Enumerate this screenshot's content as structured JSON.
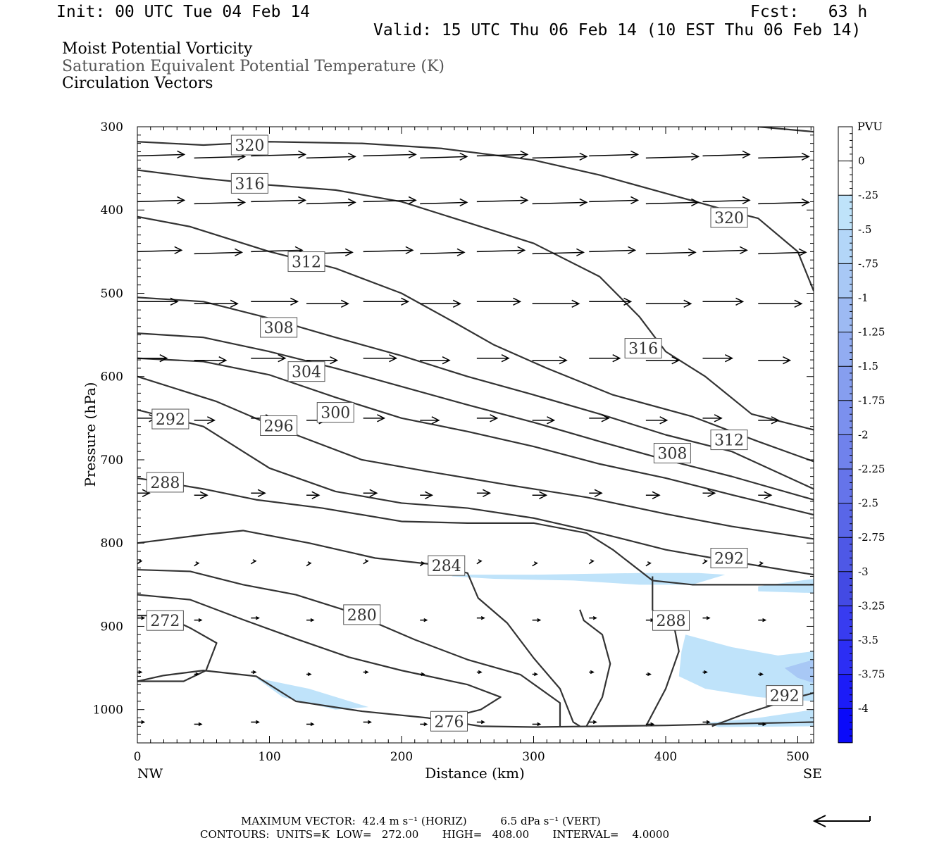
{
  "header": {
    "init": "Init: 00 UTC Tue 04 Feb 14",
    "fcst": "Fcst:   63 h",
    "valid": "Valid: 15 UTC Thu 06 Feb 14 (10 EST Thu 06 Feb 14)",
    "line1": "Moist Potential Vorticity",
    "line2": "Saturation Equivalent Potential Temperature (K)",
    "line3": "Circulation Vectors"
  },
  "footer": {
    "max_vector": "MAXIMUM VECTOR:  42.4 m s⁻¹ (HORIZ)          6.5 dPa s⁻¹ (VERT)",
    "contours": "CONTOURS:  UNITS=K  LOW=   272.00       HIGH=   408.00       INTERVAL=    4.0000"
  },
  "colors": {
    "contour": "#333333",
    "vector": "#000000",
    "pv_light": "#bfe3fa",
    "pv_mid": "#a8c8f5"
  },
  "chart_data": {
    "type": "cross-section",
    "xlabel": "Distance (km)",
    "ylabel": "Pressure (hPa)",
    "xlim": [
      0,
      512
    ],
    "ylim": [
      1040,
      300
    ],
    "x_ticks": [
      0,
      100,
      200,
      300,
      400,
      500
    ],
    "y_ticks": [
      300,
      400,
      500,
      600,
      700,
      800,
      900,
      1000
    ],
    "x_end_labels": [
      "NW",
      "SE"
    ],
    "colorbar": {
      "title": "PVU",
      "levels": [
        "0",
        "-.25",
        "-.5",
        "-.75",
        "-1",
        "-1.25",
        "-1.5",
        "-1.75",
        "-2",
        "-2.25",
        "-2.5",
        "-2.75",
        "-3",
        "-3.25",
        "-3.5",
        "-3.75",
        "-4"
      ],
      "colors": [
        "#ffffff",
        "#ffffff",
        "#bfe3fa",
        "#b3d6f8",
        "#a8c8f5",
        "#9dbaf3",
        "#92acf1",
        "#869eef",
        "#7b90ee",
        "#7082ec",
        "#6574ea",
        "#5966e8",
        "#4e58e6",
        "#434ae4",
        "#383cf0",
        "#2c2ef4",
        "#1c1cf8",
        "#0a0afa"
      ]
    },
    "contour_labels": [
      {
        "label": "320",
        "x": 85,
        "p": 322
      },
      {
        "label": "316",
        "x": 85,
        "p": 368
      },
      {
        "label": "312",
        "x": 128,
        "p": 462
      },
      {
        "label": "308",
        "x": 107,
        "p": 541
      },
      {
        "label": "304",
        "x": 128,
        "p": 594
      },
      {
        "label": "300",
        "x": 150,
        "p": 643
      },
      {
        "label": "296",
        "x": 107,
        "p": 659
      },
      {
        "label": "292",
        "x": 25,
        "p": 651
      },
      {
        "label": "288",
        "x": 21,
        "p": 727
      },
      {
        "label": "284",
        "x": 234,
        "p": 827
      },
      {
        "label": "280",
        "x": 170,
        "p": 886
      },
      {
        "label": "272",
        "x": 21,
        "p": 893
      },
      {
        "label": "276",
        "x": 236,
        "p": 1014
      },
      {
        "label": "316",
        "x": 383,
        "p": 566
      },
      {
        "label": "320",
        "x": 448,
        "p": 409
      },
      {
        "label": "312",
        "x": 448,
        "p": 676
      },
      {
        "label": "308",
        "x": 405,
        "p": 692
      },
      {
        "label": "292",
        "x": 448,
        "p": 818
      },
      {
        "label": "288",
        "x": 404,
        "p": 893
      },
      {
        "label": "292",
        "x": 490,
        "p": 983
      }
    ],
    "contours": [
      {
        "level": 320,
        "pts": [
          [
            0,
            318
          ],
          [
            50,
            322
          ],
          [
            100,
            318
          ],
          [
            170,
            320
          ],
          [
            230,
            326
          ],
          [
            300,
            340
          ],
          [
            350,
            358
          ],
          [
            400,
            380
          ],
          [
            450,
            402
          ],
          [
            470,
            410
          ],
          [
            500,
            450
          ],
          [
            512,
            497
          ]
        ]
      },
      {
        "level": 320,
        "pts": [
          [
            470,
            300
          ],
          [
            512,
            306
          ]
        ]
      },
      {
        "level": 316,
        "pts": [
          [
            0,
            352
          ],
          [
            50,
            362
          ],
          [
            100,
            370
          ],
          [
            150,
            376
          ],
          [
            200,
            390
          ],
          [
            250,
            415
          ],
          [
            300,
            440
          ],
          [
            350,
            480
          ],
          [
            380,
            528
          ],
          [
            400,
            570
          ],
          [
            430,
            600
          ],
          [
            465,
            645
          ],
          [
            512,
            664
          ]
        ]
      },
      {
        "level": 312,
        "pts": [
          [
            0,
            408
          ],
          [
            40,
            420
          ],
          [
            100,
            450
          ],
          [
            150,
            470
          ],
          [
            200,
            500
          ],
          [
            240,
            535
          ],
          [
            270,
            562
          ],
          [
            310,
            590
          ],
          [
            360,
            622
          ],
          [
            420,
            648
          ],
          [
            470,
            678
          ],
          [
            512,
            702
          ]
        ]
      },
      {
        "level": 308,
        "pts": [
          [
            0,
            505
          ],
          [
            50,
            510
          ],
          [
            100,
            530
          ],
          [
            150,
            553
          ],
          [
            200,
            575
          ],
          [
            250,
            600
          ],
          [
            300,
            622
          ],
          [
            350,
            645
          ],
          [
            400,
            670
          ],
          [
            450,
            690
          ],
          [
            512,
            735
          ]
        ]
      },
      {
        "level": 304,
        "pts": [
          [
            0,
            548
          ],
          [
            50,
            553
          ],
          [
            100,
            570
          ],
          [
            150,
            590
          ],
          [
            200,
            612
          ],
          [
            250,
            634
          ],
          [
            300,
            655
          ],
          [
            350,
            678
          ],
          [
            400,
            700
          ],
          [
            450,
            720
          ],
          [
            512,
            748
          ]
        ]
      },
      {
        "level": 300,
        "pts": [
          [
            0,
            578
          ],
          [
            50,
            582
          ],
          [
            100,
            598
          ],
          [
            150,
            625
          ],
          [
            200,
            650
          ],
          [
            250,
            666
          ],
          [
            300,
            684
          ],
          [
            350,
            705
          ],
          [
            400,
            722
          ],
          [
            450,
            742
          ],
          [
            512,
            766
          ]
        ]
      },
      {
        "level": 296,
        "pts": [
          [
            0,
            600
          ],
          [
            60,
            630
          ],
          [
            110,
            664
          ],
          [
            170,
            700
          ],
          [
            220,
            714
          ],
          [
            280,
            730
          ],
          [
            340,
            745
          ],
          [
            400,
            765
          ],
          [
            450,
            780
          ],
          [
            512,
            795
          ]
        ]
      },
      {
        "level": 292,
        "pts": [
          [
            0,
            640
          ],
          [
            50,
            660
          ],
          [
            80,
            690
          ],
          [
            100,
            710
          ],
          [
            150,
            738
          ],
          [
            200,
            752
          ],
          [
            250,
            758
          ],
          [
            300,
            770
          ],
          [
            350,
            788
          ],
          [
            400,
            808
          ],
          [
            450,
            822
          ],
          [
            512,
            838
          ]
        ]
      },
      {
        "level": 288,
        "pts": [
          [
            0,
            722
          ],
          [
            50,
            735
          ],
          [
            90,
            748
          ],
          [
            140,
            758
          ],
          [
            200,
            774
          ],
          [
            250,
            776
          ],
          [
            300,
            776
          ],
          [
            340,
            788
          ],
          [
            360,
            808
          ],
          [
            390,
            845
          ],
          [
            420,
            850
          ],
          [
            450,
            850
          ],
          [
            470,
            850
          ],
          [
            512,
            850
          ]
        ]
      },
      {
        "level": 284,
        "pts": [
          [
            0,
            800
          ],
          [
            50,
            790
          ],
          [
            80,
            785
          ],
          [
            130,
            800
          ],
          [
            180,
            818
          ],
          [
            220,
            825
          ],
          [
            250,
            836
          ],
          [
            258,
            866
          ],
          [
            280,
            896
          ],
          [
            300,
            938
          ],
          [
            320,
            975
          ],
          [
            330,
            1015
          ],
          [
            335,
            1020
          ]
        ]
      },
      {
        "level": 280,
        "pts": [
          [
            0,
            832
          ],
          [
            40,
            834
          ],
          [
            80,
            850
          ],
          [
            120,
            862
          ],
          [
            160,
            882
          ],
          [
            210,
            916
          ],
          [
            250,
            940
          ],
          [
            290,
            958
          ],
          [
            320,
            992
          ],
          [
            320,
            1020
          ]
        ]
      },
      {
        "level": 276,
        "pts": [
          [
            0,
            862
          ],
          [
            40,
            868
          ],
          [
            80,
            892
          ],
          [
            120,
            915
          ],
          [
            160,
            937
          ],
          [
            200,
            953
          ],
          [
            250,
            970
          ],
          [
            275,
            985
          ],
          [
            260,
            1000
          ],
          [
            240,
            1008
          ]
        ]
      },
      {
        "level": 272,
        "pts": [
          [
            0,
            887
          ],
          [
            20,
            887
          ],
          [
            40,
            902
          ],
          [
            60,
            920
          ],
          [
            52,
            953
          ],
          [
            35,
            966
          ],
          [
            0,
            966
          ]
        ]
      },
      {
        "level": 276,
        "pts": [
          [
            0,
            966
          ],
          [
            20,
            959
          ],
          [
            50,
            953
          ],
          [
            90,
            960
          ],
          [
            120,
            990
          ],
          [
            170,
            1002
          ],
          [
            220,
            1010
          ],
          [
            260,
            1020
          ],
          [
            300,
            1021
          ]
        ]
      },
      {
        "level": 288,
        "pts": [
          [
            340,
            1020
          ],
          [
            352,
            985
          ],
          [
            358,
            945
          ],
          [
            352,
            910
          ],
          [
            338,
            893
          ],
          [
            335,
            880
          ]
        ]
      },
      {
        "level": 288,
        "pts": [
          [
            385,
            1020
          ],
          [
            400,
            975
          ],
          [
            410,
            930
          ],
          [
            407,
            905
          ],
          [
            393,
            890
          ],
          [
            390,
            880
          ],
          [
            390,
            840
          ]
        ]
      },
      {
        "level": 292,
        "pts": [
          [
            435,
            1020
          ],
          [
            460,
            1005
          ],
          [
            500,
            985
          ],
          [
            512,
            980
          ]
        ]
      },
      {
        "level": 296,
        "pts": [
          [
            300,
            1021
          ],
          [
            400,
            1019
          ],
          [
            450,
            1017
          ],
          [
            512,
            1015
          ]
        ]
      }
    ],
    "pv_regions": [
      {
        "value": -0.25,
        "pts": [
          [
            238,
            840
          ],
          [
            270,
            843
          ],
          [
            330,
            845
          ],
          [
            380,
            850
          ],
          [
            420,
            850
          ],
          [
            445,
            838
          ],
          [
            425,
            836
          ],
          [
            380,
            836
          ],
          [
            300,
            838
          ],
          [
            240,
            838
          ]
        ]
      },
      {
        "value": -0.25,
        "pts": [
          [
            470,
            852
          ],
          [
            512,
            843
          ],
          [
            512,
            860
          ],
          [
            470,
            858
          ]
        ]
      },
      {
        "value": -0.25,
        "pts": [
          [
            415,
            910
          ],
          [
            450,
            925
          ],
          [
            485,
            935
          ],
          [
            512,
            930
          ],
          [
            512,
            990
          ],
          [
            470,
            985
          ],
          [
            430,
            975
          ],
          [
            410,
            960
          ],
          [
            412,
            930
          ]
        ]
      },
      {
        "value": -0.25,
        "pts": [
          [
            90,
            962
          ],
          [
            130,
            975
          ],
          [
            175,
            997
          ],
          [
            150,
            1000
          ],
          [
            110,
            985
          ]
        ]
      },
      {
        "value": -0.25,
        "pts": [
          [
            430,
            1016
          ],
          [
            470,
            1010
          ],
          [
            512,
            1000
          ],
          [
            512,
            1020
          ],
          [
            440,
            1021
          ]
        ]
      },
      {
        "value": -0.5,
        "pts": [
          [
            490,
            950
          ],
          [
            512,
            940
          ],
          [
            512,
            968
          ],
          [
            500,
            962
          ]
        ]
      }
    ],
    "vector_rows": [
      {
        "p": 335,
        "len": 35,
        "dy": -1
      },
      {
        "p": 390,
        "len": 35,
        "dy": -1
      },
      {
        "p": 450,
        "len": 33,
        "dy": -1
      },
      {
        "p": 510,
        "len": 30,
        "dy": 0
      },
      {
        "p": 578,
        "len": 22,
        "dy": 0
      },
      {
        "p": 650,
        "len": 14,
        "dy": 0
      },
      {
        "p": 740,
        "len": 9,
        "dy": 0
      },
      {
        "p": 825,
        "len": 3,
        "dy": -2
      },
      {
        "p": 890,
        "len": 5,
        "dy": 0
      },
      {
        "p": 955,
        "len": 3,
        "dy": 0
      },
      {
        "p": 1015,
        "len": 5,
        "dy": 0
      }
    ],
    "vector_x": [
      0,
      43,
      86,
      128,
      171,
      214,
      257,
      299,
      342,
      385,
      428,
      470
    ]
  }
}
